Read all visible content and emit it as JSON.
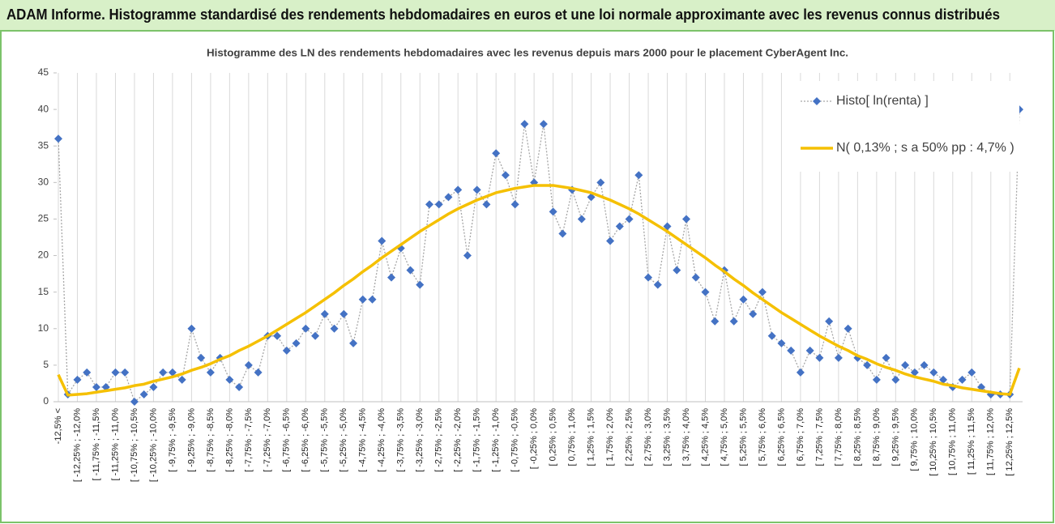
{
  "chart_data": {
    "type": "line",
    "title": "ADAM Informe. Histogramme standardisé des rendements hebdomadaires en euros et une loi normale approximante avec les revenus connus distribués",
    "subtitle": "Histogramme des LN des rendements hebdomadaires avec les revenus depuis mars 2000 pour le placement CyberAgent Inc.",
    "categories": [
      "-12,5% <",
      null,
      "[ -12,25% ; -12,0%",
      null,
      "[ -11,75% ; -11,5%",
      null,
      "[ -11,25% ; -11,0%",
      null,
      "[ -10,75% ; -10,5%",
      null,
      "[ -10,25% ; -10,0%",
      null,
      "[ -9,75% ; -9,5%",
      null,
      "[ -9,25% ; -9,0%",
      null,
      "[ -8,75% ; -8,5%",
      null,
      "[ -8,25% ; -8,0%",
      null,
      "[ -7,75% ; -7,5%",
      null,
      "[ -7,25% ; -7,0%",
      null,
      "[ -6,75% ; -6,5%",
      null,
      "[ -6,25% ; -6,0%",
      null,
      "[ -5,75% ; -5,5%",
      null,
      "[ -5,25% ; -5,0%",
      null,
      "[ -4,75% ; -4,5%",
      null,
      "[ -4,25% ; -4,0%",
      null,
      "[ -3,75% ; -3,5%",
      null,
      "[ -3,25% ; -3,0%",
      null,
      "[ -2,75% ; -2,5%",
      null,
      "[ -2,25% ; -2,0%",
      null,
      "[ -1,75% ; -1,5%",
      null,
      "[ -1,25% ; -1,0%",
      null,
      "[ -0,75% ; -0,5%",
      null,
      "[ -0,25% ; 0,0%",
      null,
      "[ 0,25% ; 0,5%",
      null,
      "[ 0,75% ; 1,0%",
      null,
      "[ 1,25% ; 1,5%",
      null,
      "[ 1,75% ; 2,0%",
      null,
      "[ 2,25% ; 2,5%",
      null,
      "[ 2,75% ; 3,0%",
      null,
      "[ 3,25% ; 3,5%",
      null,
      "[ 3,75% ; 4,0%",
      null,
      "[ 4,25% ; 4,5%",
      null,
      "[ 4,75% ; 5,0%",
      null,
      "[ 5,25% ; 5,5%",
      null,
      "[ 5,75% ; 6,0%",
      null,
      "[ 6,25% ; 6,5%",
      null,
      "[ 6,75% ; 7,0%",
      null,
      "[ 7,25% ; 7,5%",
      null,
      "[ 7,75% ; 8,0%",
      null,
      "[ 8,25% ; 8,5%",
      null,
      "[ 8,75% ; 9,0%",
      null,
      "[ 9,25% ; 9,5%",
      null,
      "[ 9,75% ; 10,0%",
      null,
      "[ 10,25% ; 10,5%",
      null,
      "[ 10,75% ; 11,0%",
      null,
      "[ 11,25% ; 11,5%",
      null,
      "[ 11,75% ; 12,0%",
      null,
      "[ 12,25% ; 12,5%",
      null
    ],
    "series": [
      {
        "name": "Histo[ ln(renta) ]",
        "color": "#4472c4",
        "values": [
          36,
          1,
          3,
          4,
          2,
          2,
          4,
          4,
          0,
          1,
          2,
          4,
          4,
          3,
          10,
          6,
          4,
          6,
          3,
          2,
          5,
          4,
          9,
          9,
          7,
          8,
          10,
          9,
          12,
          10,
          12,
          8,
          14,
          14,
          22,
          17,
          21,
          18,
          16,
          27,
          27,
          28,
          29,
          20,
          29,
          27,
          34,
          31,
          27,
          38,
          30,
          38,
          26,
          23,
          29,
          25,
          28,
          30,
          22,
          24,
          25,
          31,
          17,
          16,
          24,
          18,
          25,
          17,
          15,
          11,
          18,
          11,
          14,
          12,
          15,
          9,
          8,
          7,
          4,
          7,
          6,
          11,
          6,
          10,
          6,
          5,
          3,
          6,
          3,
          5,
          4,
          5,
          4,
          3,
          2,
          3,
          4,
          2,
          1,
          1,
          1,
          40
        ]
      },
      {
        "name": "N( 0,13% ; s a 50% pp : 4,7% )",
        "color": "#f5c000",
        "values": [
          3.7,
          0.9,
          1.0,
          1.1,
          1.3,
          1.5,
          1.7,
          1.9,
          2.2,
          2.4,
          2.8,
          3.1,
          3.4,
          3.8,
          4.3,
          4.7,
          5.2,
          5.8,
          6.3,
          7.0,
          7.6,
          8.3,
          9.0,
          9.8,
          10.6,
          11.4,
          12.2,
          13.1,
          14.0,
          14.9,
          15.9,
          16.8,
          17.8,
          18.7,
          19.7,
          20.6,
          21.5,
          22.4,
          23.3,
          24.1,
          24.9,
          25.7,
          26.4,
          27.0,
          27.6,
          28.1,
          28.6,
          28.9,
          29.2,
          29.4,
          29.6,
          29.6,
          29.6,
          29.4,
          29.2,
          28.9,
          28.6,
          28.1,
          27.6,
          27.0,
          26.4,
          25.7,
          24.9,
          24.1,
          23.3,
          22.4,
          21.5,
          20.6,
          19.7,
          18.7,
          17.8,
          16.8,
          15.9,
          14.9,
          14.0,
          13.1,
          12.2,
          11.4,
          10.6,
          9.8,
          9.0,
          8.3,
          7.6,
          7.0,
          6.3,
          5.8,
          5.2,
          4.7,
          4.3,
          3.8,
          3.4,
          3.1,
          2.8,
          2.4,
          2.2,
          1.9,
          1.7,
          1.5,
          1.3,
          1.1,
          1.0,
          4.6
        ]
      }
    ],
    "ylim": [
      0,
      45
    ],
    "yticks": [
      0,
      5,
      10,
      15,
      20,
      25,
      30,
      35,
      40,
      45
    ],
    "grid": true,
    "legend": "upper right"
  }
}
